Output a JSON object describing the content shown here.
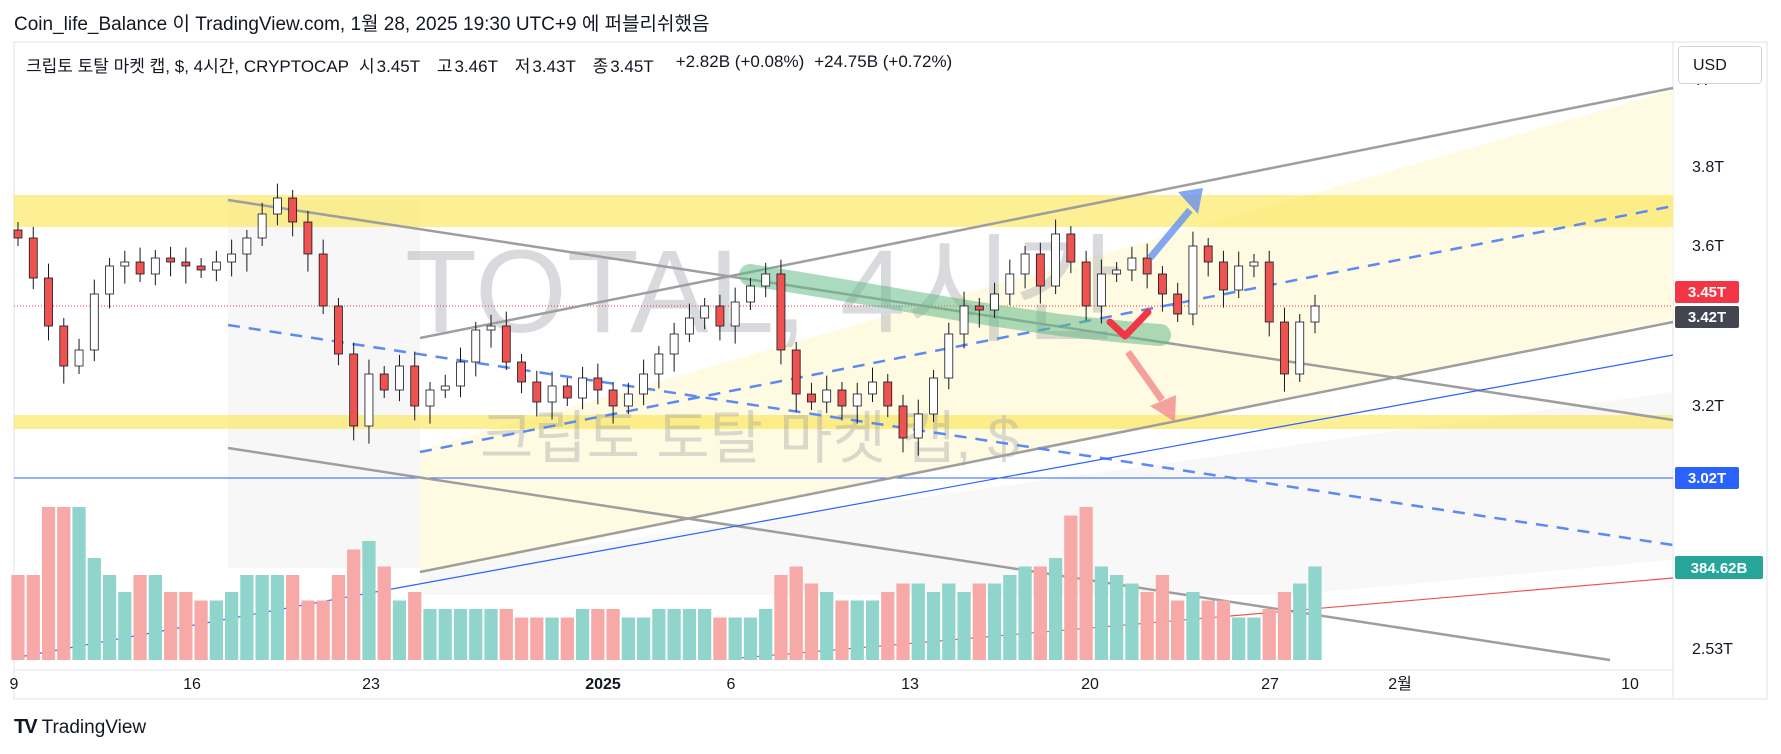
{
  "publish_info": {
    "author": "Coin_life_Balance",
    "text": " 이 TradingView.com, 1월 28, 2025 19:30 UTC+9 에 퍼블리쉬했음"
  },
  "legend": {
    "symbol": "크립토 토탈 마켓 캡, $, 4시간, CRYPTOCAP",
    "ohlc": [
      {
        "key": "시",
        "value": "3.45T"
      },
      {
        "key": "고",
        "value": "3.46T"
      },
      {
        "key": "저",
        "value": "3.43T"
      },
      {
        "key": "종",
        "value": "3.45T"
      }
    ],
    "change": "+2.82B (+0.08%)",
    "change2": "+24.75B (+0.72%)"
  },
  "currency_button": "USD",
  "watermark": {
    "big": "TOTAL, 4시간",
    "small": "크립토 토탈 마켓 캡, $"
  },
  "branding": "TradingView",
  "colors": {
    "up": "#26a69a",
    "down": "#ef5350",
    "price_label": "#f23645",
    "prev_label": "#434651",
    "hline_label": "#2962ff",
    "volume_label": "#26a69a",
    "zone": "#fbe54d"
  },
  "chart_data": {
    "type": "candlestick",
    "timeframe": "4h",
    "x_ticks": [
      "9",
      "16",
      "23",
      "2025",
      "6",
      "13",
      "20",
      "27",
      "2월",
      "10"
    ],
    "y_ticks": [
      "4T",
      "3.8T",
      "3.6T",
      "3.2T",
      "2.53T"
    ],
    "price_labels": {
      "last": "3.45T",
      "prev_close": "3.42T",
      "hline": "3.02T",
      "volume": "384.62B"
    },
    "close_series": [
      3.62,
      3.52,
      3.4,
      3.3,
      3.34,
      3.48,
      3.55,
      3.56,
      3.53,
      3.57,
      3.56,
      3.55,
      3.54,
      3.56,
      3.58,
      3.62,
      3.68,
      3.72,
      3.66,
      3.58,
      3.45,
      3.33,
      3.15,
      3.28,
      3.24,
      3.3,
      3.2,
      3.24,
      3.25,
      3.31,
      3.39,
      3.4,
      3.31,
      3.26,
      3.21,
      3.25,
      3.22,
      3.27,
      3.24,
      3.2,
      3.23,
      3.28,
      3.33,
      3.38,
      3.42,
      3.45,
      3.4,
      3.46,
      3.5,
      3.53,
      3.34,
      3.23,
      3.21,
      3.24,
      3.2,
      3.23,
      3.26,
      3.2,
      3.12,
      3.18,
      3.27,
      3.38,
      3.45,
      3.44,
      3.48,
      3.53,
      3.58,
      3.5,
      3.63,
      3.56,
      3.45,
      3.53,
      3.54,
      3.57,
      3.53,
      3.48,
      3.43,
      3.6,
      3.56,
      3.49,
      3.55,
      3.56,
      3.41,
      3.28,
      3.41,
      3.45
    ],
    "volume_series": [
      0.5,
      0.5,
      0.9,
      0.9,
      0.9,
      0.6,
      0.5,
      0.4,
      0.5,
      0.5,
      0.4,
      0.4,
      0.35,
      0.35,
      0.4,
      0.5,
      0.5,
      0.5,
      0.5,
      0.35,
      0.35,
      0.5,
      0.65,
      0.7,
      0.55,
      0.35,
      0.4,
      0.3,
      0.3,
      0.3,
      0.3,
      0.3,
      0.3,
      0.25,
      0.25,
      0.25,
      0.25,
      0.3,
      0.3,
      0.3,
      0.25,
      0.25,
      0.3,
      0.3,
      0.3,
      0.3,
      0.25,
      0.25,
      0.25,
      0.3,
      0.5,
      0.55,
      0.45,
      0.4,
      0.35,
      0.35,
      0.35,
      0.4,
      0.45,
      0.45,
      0.4,
      0.45,
      0.4,
      0.45,
      0.45,
      0.5,
      0.55,
      0.55,
      0.6,
      0.85,
      0.9,
      0.55,
      0.5,
      0.45,
      0.4,
      0.5,
      0.35,
      0.4,
      0.35,
      0.35,
      0.25,
      0.25,
      0.3,
      0.4,
      0.45,
      0.55
    ]
  }
}
